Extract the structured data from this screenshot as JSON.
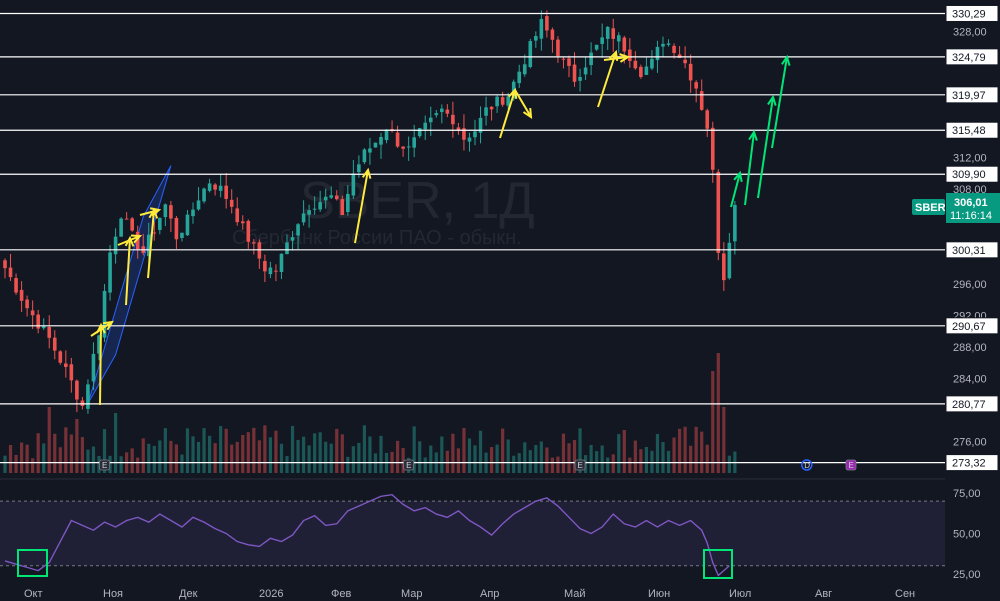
{
  "chart_data": {
    "type": "candlestick",
    "watermark": {
      "symbol": "SBER, 1Д",
      "description": "Сбербанк России ПАО - обыкн."
    },
    "price_axis": {
      "ylim": [
        272.0,
        332.0
      ],
      "ticks": [
        "328,00",
        "312,00",
        "308,00",
        "296,00",
        "292,00",
        "288,00",
        "284,00",
        "276,00"
      ]
    },
    "time_axis": {
      "labels": [
        "Окт",
        "Ноя",
        "Дек",
        "2026",
        "Фев",
        "Мар",
        "Апр",
        "Май",
        "Июн",
        "Июл",
        "Авг",
        "Сен"
      ]
    },
    "levels": [
      {
        "value": 330.29,
        "label": "330,29"
      },
      {
        "value": 324.79,
        "label": "324,79"
      },
      {
        "value": 319.97,
        "label": "319,97"
      },
      {
        "value": 315.48,
        "label": "315,48"
      },
      {
        "value": 309.9,
        "label": "309,90"
      },
      {
        "value": 300.31,
        "label": "300,31"
      },
      {
        "value": 290.67,
        "label": "290,67"
      },
      {
        "value": 280.77,
        "label": "280,77"
      },
      {
        "value": 273.32,
        "label": "273,32"
      }
    ],
    "last_price": {
      "symbol": "SBER",
      "price": "306,01",
      "countdown": "11:16:14",
      "value": 306.01
    },
    "price_path": [
      [
        0,
        298
      ],
      [
        4,
        293
      ],
      [
        8,
        289
      ],
      [
        11,
        285
      ],
      [
        14,
        280.5
      ],
      [
        17,
        290
      ],
      [
        19,
        300
      ],
      [
        21,
        305
      ],
      [
        23,
        302
      ],
      [
        25,
        300
      ],
      [
        27,
        303
      ],
      [
        29,
        306
      ],
      [
        31,
        302
      ],
      [
        33,
        304
      ],
      [
        35,
        307
      ],
      [
        37,
        309
      ],
      [
        39,
        308
      ],
      [
        41,
        306
      ],
      [
        43,
        303
      ],
      [
        45,
        300.5
      ],
      [
        47,
        298
      ],
      [
        49,
        297.8
      ],
      [
        51,
        301
      ],
      [
        53,
        304
      ],
      [
        55,
        306
      ],
      [
        57,
        306.5
      ],
      [
        59,
        307
      ],
      [
        61,
        305
      ],
      [
        63,
        310
      ],
      [
        65,
        312.5
      ],
      [
        67,
        314
      ],
      [
        69,
        316
      ],
      [
        71,
        314
      ],
      [
        73,
        313
      ],
      [
        75,
        315
      ],
      [
        77,
        316.5
      ],
      [
        79,
        318
      ],
      [
        81,
        317
      ],
      [
        83,
        314.5
      ],
      [
        85,
        315.5
      ],
      [
        87,
        318
      ],
      [
        89,
        319
      ],
      [
        91,
        320
      ],
      [
        93,
        323
      ],
      [
        95,
        326
      ],
      [
        97,
        329
      ],
      [
        99,
        327
      ],
      [
        101,
        324
      ],
      [
        103,
        322
      ],
      [
        105,
        324
      ],
      [
        107,
        326
      ],
      [
        109,
        328
      ],
      [
        111,
        327
      ],
      [
        113,
        325
      ],
      [
        115,
        323
      ],
      [
        117,
        324
      ],
      [
        119,
        327
      ],
      [
        121,
        326
      ],
      [
        123,
        324
      ],
      [
        125,
        321
      ],
      [
        127,
        316
      ],
      [
        128,
        310
      ],
      [
        129,
        300.5
      ],
      [
        130,
        297
      ],
      [
        131,
        302
      ],
      [
        132,
        306.01
      ]
    ],
    "volume": {
      "ylim": [
        0,
        1
      ],
      "spikes": [
        {
          "x": 8,
          "v": 0.55
        },
        {
          "x": 13,
          "v": 0.45
        },
        {
          "x": 20,
          "v": 0.5
        },
        {
          "x": 128,
          "v": 0.85
        },
        {
          "x": 129,
          "v": 1.0
        },
        {
          "x": 130,
          "v": 0.55
        }
      ]
    },
    "event_markers": [
      {
        "x": 18,
        "label": "E"
      },
      {
        "x": 73,
        "label": "E"
      },
      {
        "x": 104,
        "label": "E"
      },
      {
        "x": 145,
        "label": "D"
      },
      {
        "x": 153,
        "label": "E"
      }
    ],
    "rsi": {
      "ylim": [
        15,
        80
      ],
      "ticks": [
        "75,00",
        "50,00",
        "25,00"
      ],
      "upper": 70,
      "lower": 30,
      "values": [
        [
          0,
          33
        ],
        [
          2,
          31
        ],
        [
          4,
          29
        ],
        [
          6,
          27
        ],
        [
          8,
          32
        ],
        [
          10,
          45
        ],
        [
          12,
          58
        ],
        [
          14,
          55
        ],
        [
          16,
          52
        ],
        [
          18,
          57
        ],
        [
          20,
          54
        ],
        [
          22,
          58
        ],
        [
          24,
          60
        ],
        [
          26,
          57
        ],
        [
          28,
          62
        ],
        [
          30,
          58
        ],
        [
          32,
          54
        ],
        [
          34,
          60
        ],
        [
          36,
          57
        ],
        [
          38,
          53
        ],
        [
          40,
          50
        ],
        [
          42,
          45
        ],
        [
          44,
          43
        ],
        [
          46,
          42
        ],
        [
          48,
          47
        ],
        [
          50,
          45
        ],
        [
          52,
          49
        ],
        [
          54,
          58
        ],
        [
          56,
          61
        ],
        [
          58,
          55
        ],
        [
          60,
          56
        ],
        [
          62,
          64
        ],
        [
          64,
          67
        ],
        [
          66,
          70
        ],
        [
          68,
          73
        ],
        [
          70,
          74
        ],
        [
          72,
          68
        ],
        [
          74,
          64
        ],
        [
          76,
          66
        ],
        [
          78,
          62
        ],
        [
          80,
          60
        ],
        [
          82,
          64
        ],
        [
          84,
          58
        ],
        [
          86,
          54
        ],
        [
          88,
          49
        ],
        [
          90,
          56
        ],
        [
          92,
          62
        ],
        [
          94,
          66
        ],
        [
          96,
          70
        ],
        [
          98,
          72
        ],
        [
          100,
          67
        ],
        [
          102,
          60
        ],
        [
          104,
          53
        ],
        [
          106,
          50
        ],
        [
          108,
          54
        ],
        [
          110,
          62
        ],
        [
          112,
          56
        ],
        [
          114,
          54
        ],
        [
          116,
          58
        ],
        [
          118,
          54
        ],
        [
          120,
          58
        ],
        [
          122,
          55
        ],
        [
          124,
          58
        ],
        [
          126,
          52
        ],
        [
          127,
          44
        ],
        [
          128,
          32
        ],
        [
          129,
          24
        ],
        [
          130,
          27
        ],
        [
          131,
          30
        ]
      ]
    },
    "annotations": {
      "channel": "rising channel Oct–Nov",
      "colors": {
        "up": "#26a69a",
        "down": "#ef5350",
        "levels": "#ffffff",
        "rsi": "#7e57c2",
        "channel": "#2962ff",
        "arrow_yellow": "#ffeb3b",
        "arrow_green": "#00e676",
        "highlight": "#00e676",
        "tag": "#089981"
      }
    }
  }
}
